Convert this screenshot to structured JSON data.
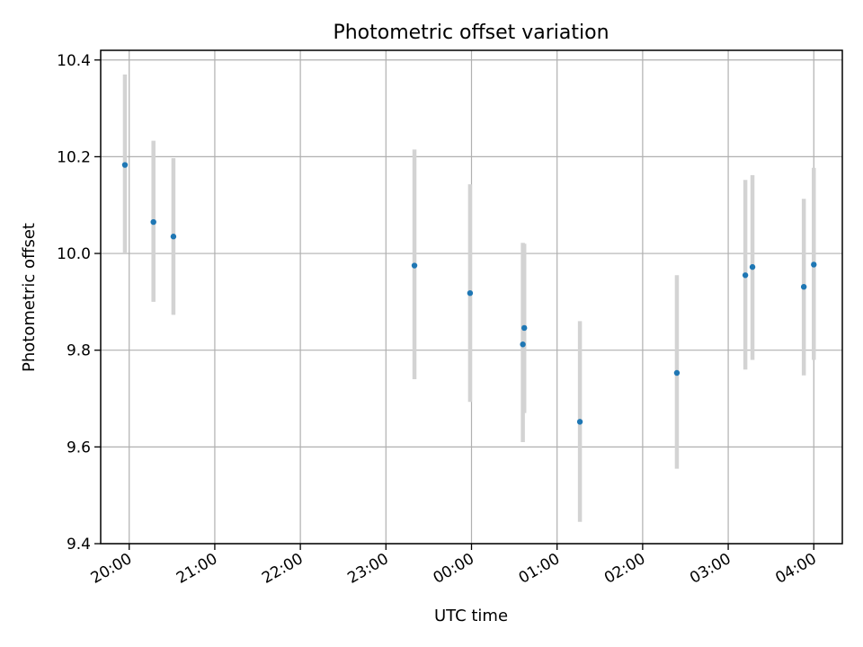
{
  "chart_data": {
    "type": "scatter",
    "title": "Photometric offset variation",
    "xlabel": "UTC time",
    "ylabel": "Photometric offset",
    "x_ticks": [
      "20:00",
      "21:00",
      "22:00",
      "23:00",
      "00:00",
      "01:00",
      "02:00",
      "03:00",
      "04:00"
    ],
    "y_ticks": [
      "9.4",
      "9.6",
      "9.8",
      "10.0",
      "10.2",
      "10.4"
    ],
    "ylim": [
      9.4,
      10.42
    ],
    "xlim": [
      "19:40",
      "04:20"
    ],
    "grid": true,
    "points": [
      {
        "x": "19:57",
        "y": 10.183,
        "err_low": 10.0,
        "err_high": 10.37
      },
      {
        "x": "20:17",
        "y": 10.065,
        "err_low": 9.9,
        "err_high": 10.233
      },
      {
        "x": "20:31",
        "y": 10.035,
        "err_low": 9.873,
        "err_high": 10.197
      },
      {
        "x": "23:20",
        "y": 9.975,
        "err_low": 9.74,
        "err_high": 10.215
      },
      {
        "x": "23:59",
        "y": 9.918,
        "err_low": 9.693,
        "err_high": 10.143
      },
      {
        "x": "00:36",
        "y": 9.812,
        "err_low": 9.61,
        "err_high": 10.022
      },
      {
        "x": "00:37",
        "y": 9.846,
        "err_low": 9.67,
        "err_high": 10.02
      },
      {
        "x": "01:16",
        "y": 9.652,
        "err_low": 9.445,
        "err_high": 9.86
      },
      {
        "x": "02:24",
        "y": 9.753,
        "err_low": 9.555,
        "err_high": 9.955
      },
      {
        "x": "03:12",
        "y": 9.955,
        "err_low": 9.76,
        "err_high": 10.152
      },
      {
        "x": "03:17",
        "y": 9.972,
        "err_low": 9.78,
        "err_high": 10.162
      },
      {
        "x": "03:53",
        "y": 9.931,
        "err_low": 9.748,
        "err_high": 10.113
      },
      {
        "x": "04:00",
        "y": 9.977,
        "err_low": 9.78,
        "err_high": 10.177
      }
    ],
    "colors": {
      "point": "#1f77b4",
      "errorbar": "#d3d3d3",
      "grid": "#b0b0b0",
      "axis": "#000000"
    }
  }
}
